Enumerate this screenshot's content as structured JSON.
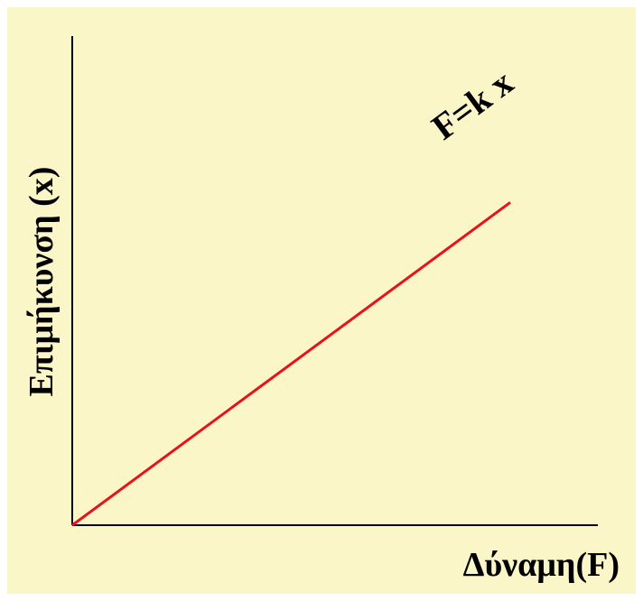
{
  "chart_data": {
    "type": "line",
    "title": "",
    "xlabel": "Δύναμη(F)",
    "ylabel": "Επιμήκυνση (x)",
    "series": [
      {
        "x": [
          0,
          1
        ],
        "y": [
          0,
          0.66
        ]
      }
    ],
    "xlim": [
      0,
      1.2
    ],
    "ylim": [
      0,
      1
    ],
    "grid": false,
    "annotations": [
      {
        "text": "F=k x",
        "x": 0.93,
        "y": 0.84
      }
    ],
    "colors": {
      "background": "#fbf6c8",
      "axis": "#000000",
      "line": "#e8121b",
      "text": "#000000"
    }
  }
}
